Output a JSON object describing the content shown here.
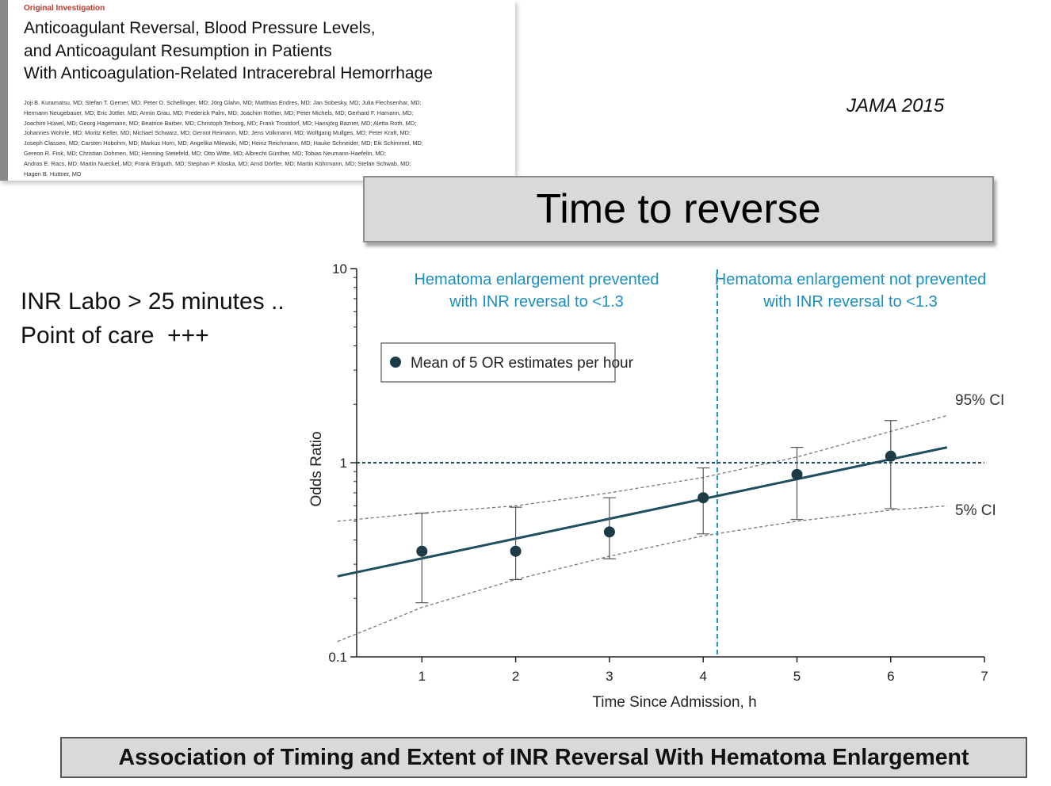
{
  "article": {
    "tag": "Original Investigation",
    "title_lines": [
      "Anticoagulant Reversal, Blood Pressure Levels,",
      "and Anticoagulant Resumption in Patients",
      "With Anticoagulation-Related Intracerebral Hemorrhage"
    ],
    "author_lines": [
      "Joji B. Kuramatsu, MD; Stefan T. Gerner, MD; Peter D. Schellinger, MD; Jörg Glahn, MD; Matthias Endres, MD; Jan Sobesky, MD; Julia Flechsenhar, MD;",
      "Hermann Neugebauer, MD; Eric Jüttler, MD; Armin Grau, MD; Frederick Palm, MD; Joachim Röther, MD; Peter Michels, MD; Gerhard F. Hamann, MD;",
      "Joachim Hüwel, MD; Georg Hagemann, MD; Beatrice Barber, MD; Christoph Terborg, MD; Frank Trostdorf, MD; Hansjörg Bazner, MD; Aletta Roth, MD;",
      "Johannes Wohrle, MD; Moritz Keller, MD; Michael Schwarz, MD; Gernot Reimann, MD; Jens Volkmann, MD; Wolfgang Mullges, MD; Peter Kraft, MD;",
      "Joseph Classen, MD; Carsten Hobohm, MD; Markus Horn, MD; Angelika Milewski, MD; Heinz Reichmann, MD; Hauke Schneider, MD; Eik Schimmel, MD;",
      "Gereon R. Fink, MD; Christian Dohmen, MD; Henning Stetefeld, MD; Otto Witte, MD; Albrecht Günther, MD; Tobias Neumann-Haefelin, MD;",
      "Andras E. Racs, MD; Martin Nueckel, MD; Frank Erbguth, MD; Stephan P. Kloska, MD; Arnd Dörfler, MD; Martin Köhrmann, MD; Stefan Schwab, MD;",
      "Hagen B. Huttner, MD"
    ]
  },
  "journal": "JAMA 2015",
  "heading": "Time to reverse",
  "notes": {
    "line1": "INR Labo > 25 minutes ..",
    "line2": "Point of care  +++"
  },
  "caption": "Association of Timing and Extent of INR Reversal With Hematoma Enlargement",
  "colors": {
    "accent_blue": "#1b8fc1",
    "fit_line": "#1d4f5e",
    "point": "#1d3a47"
  },
  "chart_data": {
    "type": "scatter",
    "xlabel": "Time Since Admission, h",
    "ylabel": "Odds Ratio",
    "xlim": [
      0,
      7
    ],
    "ylim": [
      0.1,
      10
    ],
    "y_scale": "log",
    "x_ticks": [
      "1",
      "2",
      "3",
      "4",
      "5",
      "6",
      "7"
    ],
    "y_ticks": [
      {
        "value": 0.1,
        "label": "0.1"
      },
      {
        "value": 1,
        "label": "1"
      },
      {
        "value": 10,
        "label": "10"
      }
    ],
    "reference_line_y": 1,
    "threshold_x": 4.15,
    "regions": [
      {
        "lines": [
          "Hematoma enlargement prevented",
          "with INR reversal to <1.3"
        ]
      },
      {
        "lines": [
          "Hematoma enlargement not prevented",
          "with INR reversal to <1.3"
        ]
      }
    ],
    "legend": "Mean of 5 OR estimates per hour",
    "points": [
      {
        "x": 1,
        "y": 0.35,
        "lo": 0.19,
        "hi": 0.55
      },
      {
        "x": 2,
        "y": 0.35,
        "lo": 0.25,
        "hi": 0.59
      },
      {
        "x": 3,
        "y": 0.44,
        "lo": 0.32,
        "hi": 0.66
      },
      {
        "x": 4,
        "y": 0.66,
        "lo": 0.43,
        "hi": 0.94
      },
      {
        "x": 5,
        "y": 0.87,
        "lo": 0.51,
        "hi": 1.2
      },
      {
        "x": 6,
        "y": 1.08,
        "lo": 0.58,
        "hi": 1.65
      }
    ],
    "fit_line": {
      "x": [
        0.1,
        6.6
      ],
      "y": [
        0.26,
        1.2
      ]
    },
    "ci_upper": {
      "label": "95% CI",
      "x": [
        0.1,
        1,
        2,
        3,
        4,
        5,
        6,
        6.6
      ],
      "y": [
        0.5,
        0.55,
        0.6,
        0.7,
        0.84,
        1.07,
        1.45,
        1.75
      ]
    },
    "ci_lower": {
      "label": "5% CI",
      "x": [
        0.1,
        0.6,
        1,
        2,
        3,
        4,
        5,
        6,
        6.6
      ],
      "y": [
        0.12,
        0.15,
        0.18,
        0.25,
        0.33,
        0.42,
        0.5,
        0.57,
        0.6
      ]
    }
  }
}
